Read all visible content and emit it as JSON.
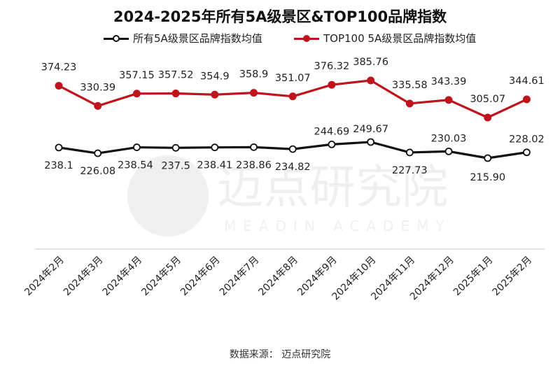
{
  "chart_data": {
    "type": "line",
    "title": "2024-2025年所有5A级景区&TOP100品牌指数",
    "categories": [
      "2024年2月",
      "2024年3月",
      "2024年4月",
      "2024年5月",
      "2024年6月",
      "2024年7月",
      "2024年8月",
      "2024年9月",
      "2024年10月",
      "2024年11月",
      "2024年12月",
      "2025年1月",
      "2025年2月"
    ],
    "series": [
      {
        "name": "所有5A级景区品牌指数均值",
        "color": "#111111",
        "marker_fill": "#ffffff",
        "values": [
          238.1,
          226.08,
          238.54,
          237.5,
          238.41,
          238.86,
          234.82,
          244.69,
          249.67,
          227.73,
          230.03,
          215.9,
          228.02
        ],
        "labels": [
          "238.1",
          "226.08",
          "238.54",
          "237.5",
          "238.41",
          "238.86",
          "234.82",
          "244.69",
          "249.67",
          "227.73",
          "230.03",
          "215.90",
          "228.02"
        ]
      },
      {
        "name": "TOP100 5A级景区品牌指数均值",
        "color": "#c0141c",
        "marker_fill": "#c0141c",
        "values": [
          374.23,
          330.39,
          357.15,
          357.52,
          354.9,
          358.9,
          351.07,
          376.32,
          385.76,
          335.58,
          343.39,
          305.07,
          344.61
        ],
        "labels": [
          "374.23",
          "330.39",
          "357.15",
          "357.52",
          "354.9",
          "358.9",
          "351.07",
          "376.32",
          "385.76",
          "335.58",
          "343.39",
          "305.07",
          "344.61"
        ]
      }
    ],
    "grid": false,
    "legend_position": "top"
  },
  "source_text": "数据来源： 迈点研究院",
  "watermark": {
    "text_cn": "迈点研究院",
    "text_en": "MEADIN ACADEMY"
  }
}
